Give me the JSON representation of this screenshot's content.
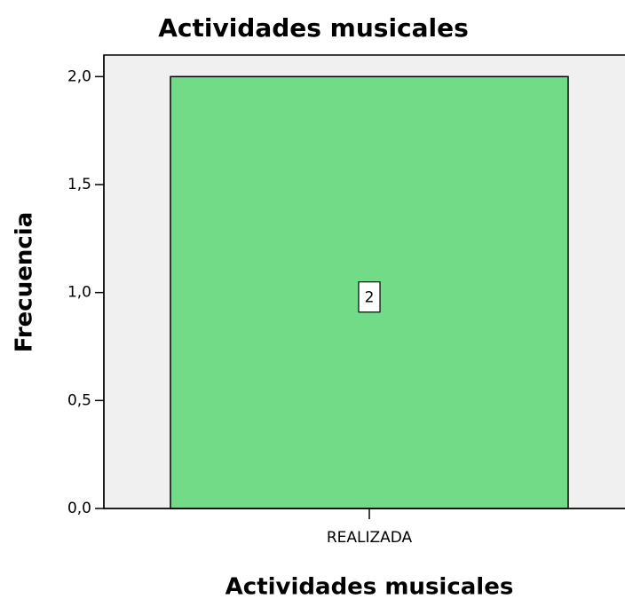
{
  "chart_data": {
    "type": "bar",
    "title": "Actividades musicales",
    "x_label": "Actividades musicales",
    "y_label": "Frecuencia",
    "categories": [
      "REALIZADA"
    ],
    "values": [
      2
    ],
    "color": "#72db87",
    "ylim": [
      0,
      2.1
    ],
    "yticks": [
      {
        "value": 0,
        "label": "0,0"
      },
      {
        "value": 0.5,
        "label": "0,5"
      },
      {
        "value": 1,
        "label": "1,0"
      },
      {
        "value": 1.5,
        "label": "1,5"
      },
      {
        "value": 2,
        "label": "2,0"
      }
    ],
    "grid": false
  }
}
